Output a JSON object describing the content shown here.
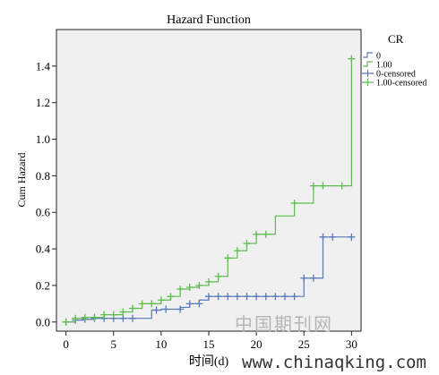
{
  "chart_data": {
    "type": "line",
    "title": "Hazard Function",
    "xlabel": "时间(d)",
    "ylabel": "Cum Hazard",
    "xlim": [
      -1,
      31
    ],
    "ylim": [
      -0.05,
      1.6
    ],
    "xticks": [
      0,
      5,
      10,
      15,
      20,
      25,
      30
    ],
    "xtick_labels": [
      "0",
      "5",
      "10",
      "15",
      "20",
      "25",
      "30"
    ],
    "yticks": [
      0.0,
      0.2,
      0.4,
      0.6,
      0.8,
      1.0,
      1.2,
      1.4
    ],
    "ytick_labels": [
      "0.0",
      "0.2",
      "0.4",
      "0.6",
      "0.8",
      "1.0",
      "1.2",
      "1.4"
    ],
    "grid": false,
    "legend_title": "CR",
    "legend_position": "right",
    "legend_entries": [
      "0",
      "1.00",
      "0-censored",
      "1.00-censored"
    ],
    "series": [
      {
        "name": "0",
        "color": "#5878b8",
        "step": true,
        "x": [
          0,
          1,
          2,
          3,
          9,
          10,
          11,
          12,
          13,
          14,
          15,
          25,
          27,
          30
        ],
        "y": [
          0.0,
          0.01,
          0.015,
          0.02,
          0.065,
          0.07,
          0.07,
          0.08,
          0.1,
          0.12,
          0.14,
          0.24,
          0.465,
          0.465
        ],
        "censored_name": "0-censored",
        "censored_x": [
          0,
          1,
          2,
          3,
          4,
          5,
          6,
          7,
          9.5,
          10.5,
          12,
          13,
          14,
          15,
          16,
          17,
          18,
          19,
          20,
          21,
          22,
          23,
          24,
          25,
          26,
          27,
          28,
          30
        ],
        "censored_y": [
          0.0,
          0.01,
          0.015,
          0.02,
          0.02,
          0.02,
          0.02,
          0.02,
          0.065,
          0.07,
          0.07,
          0.1,
          0.1,
          0.14,
          0.14,
          0.14,
          0.14,
          0.14,
          0.14,
          0.14,
          0.14,
          0.14,
          0.14,
          0.24,
          0.24,
          0.465,
          0.465,
          0.465
        ]
      },
      {
        "name": "1.00",
        "color": "#5dbb4f",
        "step": true,
        "x": [
          0,
          1,
          2,
          4,
          6,
          7,
          8,
          10,
          11,
          12,
          13,
          14,
          15,
          16,
          17,
          18,
          19,
          20,
          22,
          24,
          26,
          30
        ],
        "y": [
          0.0,
          0.02,
          0.025,
          0.04,
          0.055,
          0.075,
          0.1,
          0.12,
          0.14,
          0.18,
          0.19,
          0.2,
          0.22,
          0.25,
          0.35,
          0.39,
          0.43,
          0.48,
          0.58,
          0.65,
          0.745,
          1.44
        ],
        "censored_name": "1.00-censored",
        "censored_x": [
          0,
          1,
          2,
          3,
          4,
          5,
          6,
          7,
          8,
          9,
          10,
          11,
          12,
          13,
          14,
          15,
          16,
          17,
          18,
          19,
          20,
          21,
          24,
          26,
          27,
          29,
          30
        ],
        "censored_y": [
          0.0,
          0.02,
          0.025,
          0.025,
          0.04,
          0.04,
          0.055,
          0.075,
          0.1,
          0.1,
          0.12,
          0.14,
          0.18,
          0.19,
          0.2,
          0.22,
          0.25,
          0.35,
          0.39,
          0.43,
          0.48,
          0.48,
          0.65,
          0.745,
          0.745,
          0.745,
          1.44
        ]
      }
    ]
  },
  "watermark": {
    "cn_text": "中国期刊网",
    "url_text": "www.chinaqking.com"
  }
}
